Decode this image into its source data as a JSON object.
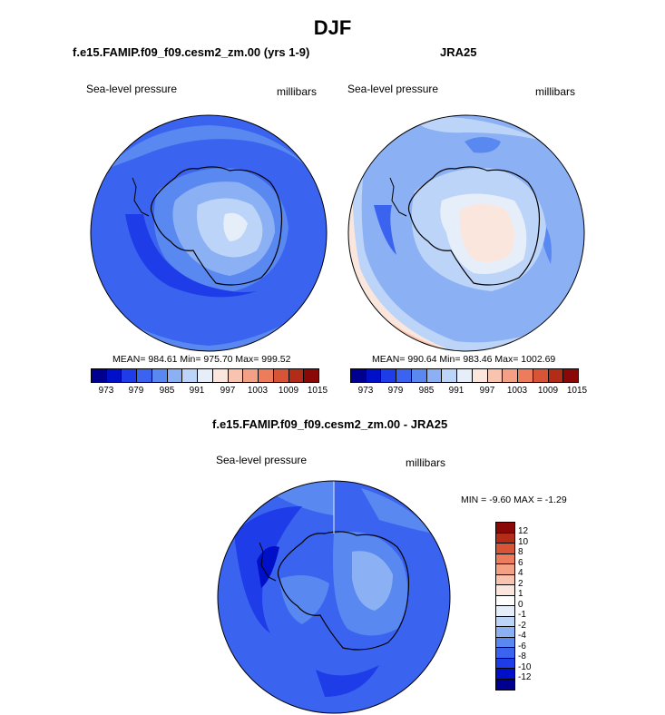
{
  "main_title": "DJF",
  "colors": {
    "palette_top": [
      "#000090",
      "#0010c8",
      "#1e3ce8",
      "#3a64f0",
      "#5888f0",
      "#8cb0f4",
      "#bcd4f8",
      "#e6eefa",
      "#fbe6de",
      "#f8c4b0",
      "#f4a084",
      "#ec7c5c",
      "#d85436",
      "#b22c18",
      "#8a0808"
    ],
    "palette_diff": [
      "#000090",
      "#0010c8",
      "#1e3ce8",
      "#3a64f0",
      "#5888f0",
      "#8cb0f4",
      "#bcd4f8",
      "#e6eefa",
      "#fbe6de",
      "#f8c4b0",
      "#f4a084",
      "#ec7c5c",
      "#d85436",
      "#b22c18",
      "#8a0808"
    ]
  },
  "panel_model": {
    "title": "f.e15.FAMIP.f09_f09.cesm2_zm.00 (yrs 1-9)",
    "variable": "Sea-level pressure",
    "units": "millibars",
    "stats": "MEAN= 984.61  Min= 975.70  Max= 999.52"
  },
  "panel_obs": {
    "title": "JRA25",
    "variable": "Sea-level pressure",
    "units": "millibars",
    "stats": "MEAN= 990.64  Min= 983.46  Max= 1002.69"
  },
  "colorbar_ticks": [
    "973",
    "979",
    "985",
    "991",
    "997",
    "1003",
    "1009",
    "1015"
  ],
  "panel_diff": {
    "title": "f.e15.FAMIP.f09_f09.cesm2_zm.00 - JRA25",
    "variable": "Sea-level pressure",
    "units": "millibars",
    "stats": "MIN =  -9.60 MAX =  -1.29",
    "ticks": [
      "12",
      "10",
      "8",
      "6",
      "4",
      "2",
      "1",
      "0",
      "-1",
      "-2",
      "-4",
      "-6",
      "-8",
      "-10",
      "-12"
    ]
  }
}
